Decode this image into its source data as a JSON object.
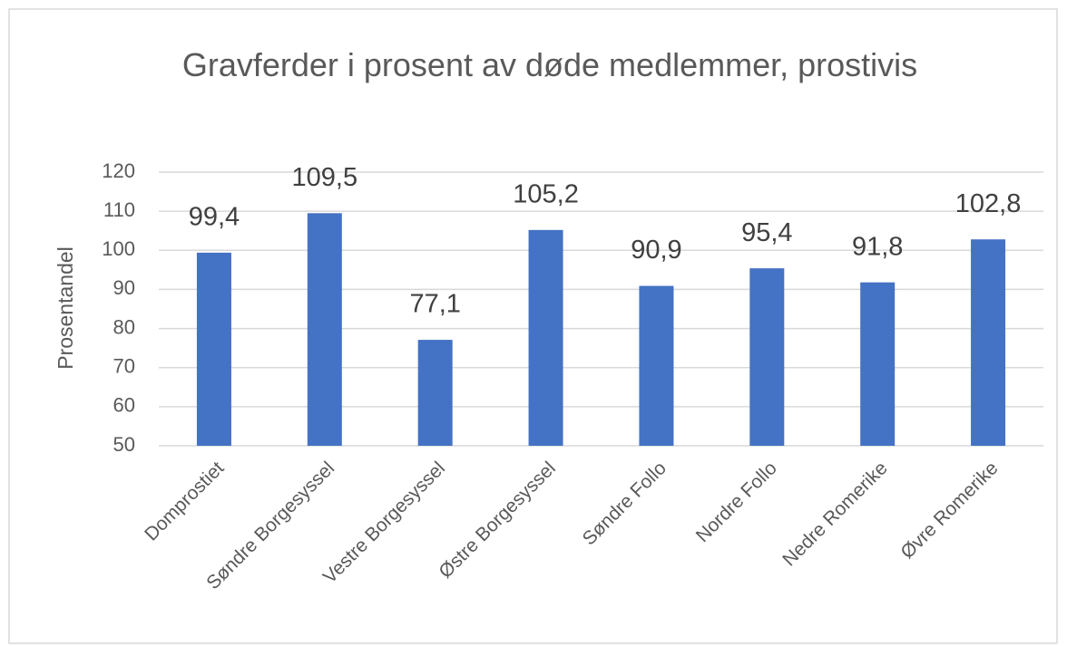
{
  "chart_data": {
    "type": "bar",
    "title": "Gravferder i prosent av døde medlemmer, prostivis",
    "y_label": "Prosentandel",
    "categories": [
      "Domprostiet",
      "Søndre Borgesyssel",
      "Vestre Borgesyssel",
      "Østre Borgesyssel",
      "Søndre Follo",
      "Nordre Follo",
      "Nedre Romerike",
      "Øvre Romerike"
    ],
    "values": [
      99.4,
      109.5,
      77.1,
      105.2,
      90.9,
      95.4,
      91.8,
      102.8
    ],
    "value_labels": [
      "99,4",
      "109,5",
      "77,1",
      "105,2",
      "90,9",
      "95,4",
      "91,8",
      "102,8"
    ],
    "color": "#4472c4",
    "ylim": [
      50,
      120
    ],
    "yticks": [
      50,
      60,
      70,
      80,
      90,
      100,
      110,
      120
    ],
    "grid": true
  }
}
